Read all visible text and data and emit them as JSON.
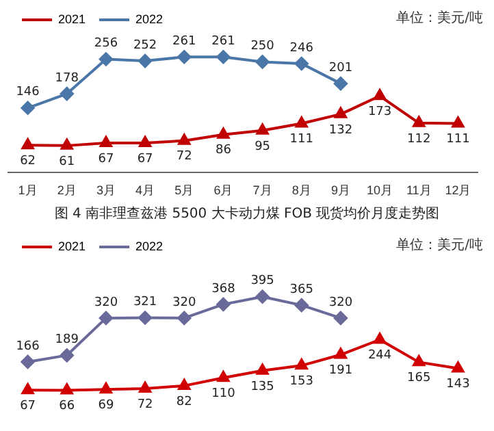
{
  "chart_data": [
    {
      "type": "line",
      "title": "图 4 南非理查兹港 5500 大卡动力煤 FOB 现货均价月度走势图",
      "annotations": [
        "单位：美元/吨"
      ],
      "categories": [
        "1月",
        "2月",
        "3月",
        "4月",
        "5月",
        "6月",
        "7月",
        "8月",
        "9月",
        "10月",
        "11月",
        "12月"
      ],
      "series": [
        {
          "name": "2021",
          "color": "#c00000",
          "marker": "triangle",
          "values": [
            62,
            61,
            67,
            67,
            72,
            86,
            95,
            111,
            132,
            173,
            112,
            111
          ]
        },
        {
          "name": "2022",
          "color": "#4a76a8",
          "marker": "diamond",
          "values": [
            146,
            178,
            256,
            252,
            261,
            261,
            250,
            246,
            201,
            null,
            null,
            null
          ]
        }
      ],
      "data_labels": true,
      "legend": "top left",
      "grid": false,
      "tick_labels": "x"
    },
    {
      "type": "line",
      "annotations": [
        "单位：美元/吨"
      ],
      "categories": [
        null,
        null,
        null,
        null,
        null,
        null,
        null,
        null,
        null,
        null,
        null,
        null
      ],
      "series": [
        {
          "name": "2021",
          "color": "#d00000",
          "marker": "triangle",
          "values": [
            67,
            66,
            69,
            72,
            82,
            110,
            135,
            153,
            191,
            244,
            165,
            143
          ]
        },
        {
          "name": "2022",
          "color": "#6a6a9a",
          "marker": "diamond",
          "values": [
            166,
            189,
            320,
            321,
            320,
            368,
            395,
            365,
            320,
            null,
            null,
            null
          ]
        }
      ],
      "data_labels": true,
      "legend": "top left",
      "grid": false,
      "tick_labels": false
    }
  ]
}
